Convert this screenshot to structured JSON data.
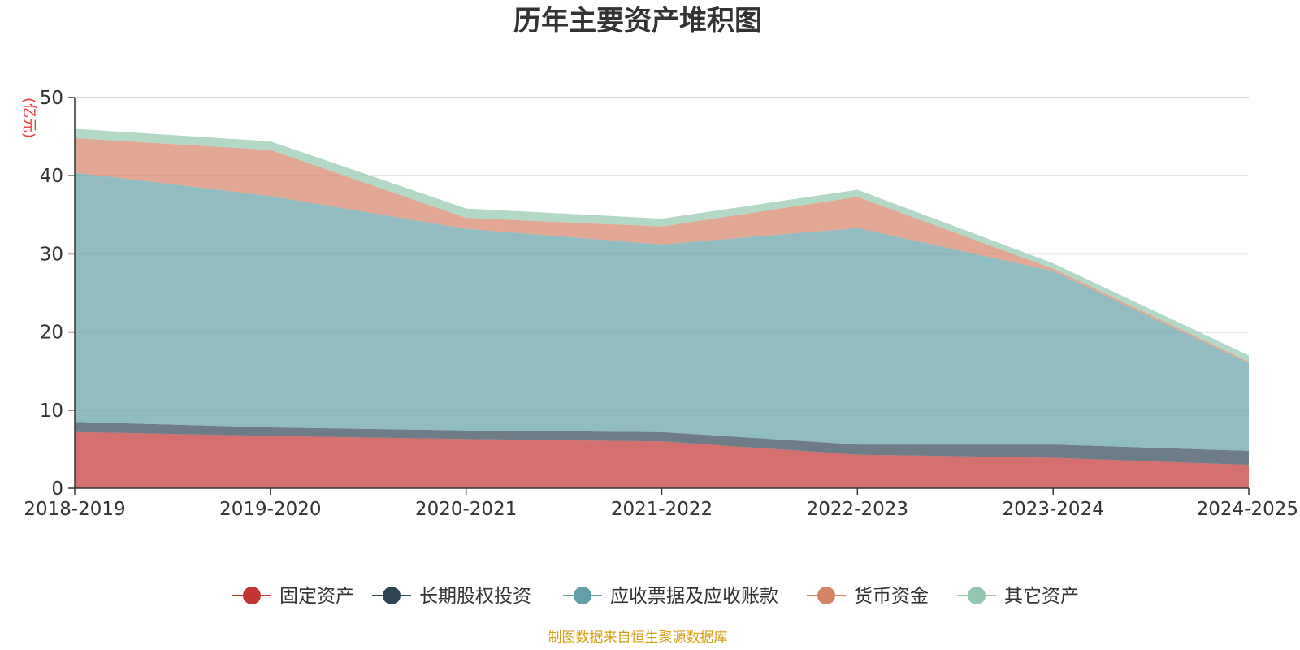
{
  "chart_data": {
    "type": "area",
    "stacked": true,
    "title": "历年主要资产堆积图",
    "unit_label": "(亿元)",
    "categories": [
      "2018-2019",
      "2019-2020",
      "2020-2021",
      "2021-2022",
      "2022-2023",
      "2023-2024",
      "2024-2025"
    ],
    "y_ticks": [
      "0",
      "10",
      "20",
      "30",
      "40",
      "50"
    ],
    "ylim": [
      0,
      50
    ],
    "grid": true,
    "legend_position": "bottom",
    "series": [
      {
        "name": "固定资产",
        "color": "#c23531",
        "values": [
          7.2,
          6.7,
          6.3,
          6.0,
          4.3,
          3.9,
          3.0
        ]
      },
      {
        "name": "长期股权投资",
        "color": "#2f4554",
        "values": [
          1.3,
          1.1,
          1.1,
          1.2,
          1.3,
          1.7,
          1.8
        ]
      },
      {
        "name": "应收票据及应收账款",
        "color": "#61a0a8",
        "values": [
          31.9,
          29.6,
          25.8,
          24.0,
          27.7,
          22.2,
          11.2
        ]
      },
      {
        "name": "货币资金",
        "color": "#d48265",
        "values": [
          4.4,
          5.9,
          1.4,
          2.3,
          4.0,
          0.3,
          0.2
        ]
      },
      {
        "name": "其它资产",
        "color": "#91c7ae",
        "values": [
          1.2,
          1.1,
          1.2,
          1.0,
          0.9,
          0.7,
          0.8
        ]
      }
    ]
  },
  "source_text": "制图数据来自恒生聚源数据库",
  "colors": {
    "title": "#333333",
    "unit": "#e83535",
    "source": "#d4a017",
    "grid": "#cccccc",
    "axis": "#333333"
  }
}
